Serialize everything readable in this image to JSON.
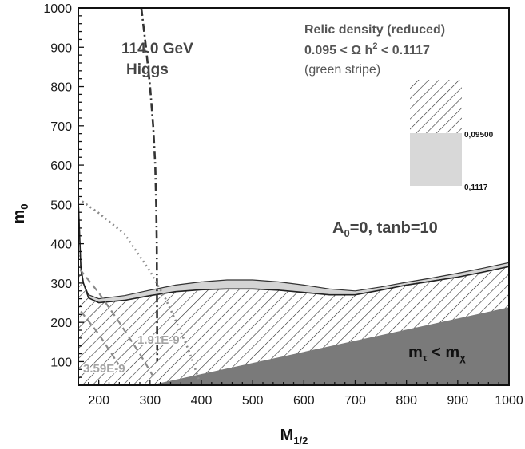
{
  "chart_data": {
    "type": "area",
    "xlabel_main": "M",
    "xlabel_sub": "1/2",
    "ylabel_main": "m",
    "ylabel_sub": "0",
    "xlim": [
      160,
      1000
    ],
    "ylim": [
      40,
      1000
    ],
    "x_ticks": [
      200,
      300,
      400,
      500,
      600,
      700,
      800,
      900,
      1000
    ],
    "y_ticks": [
      100,
      200,
      300,
      400,
      500,
      600,
      700,
      800,
      900,
      1000
    ],
    "annotations": {
      "higgs_value": "114.0  GeV",
      "higgs_label": "Higgs",
      "relic_title": "Relic density  (reduced)",
      "relic_range_left": "0.095 <  Ω h",
      "relic_range_exp": "2",
      "relic_range_right": " < 0.1117",
      "relic_note": "(green stripe)",
      "params_a": "A",
      "params_sub": "0",
      "params_rest": "=0, tanb=10",
      "bsg_label_1": "1.91E-9",
      "bsg_label_2": "3.59E-9",
      "stau_m": "m",
      "stau_tau": "τ",
      "stau_lt": " < m",
      "stau_chi": "χ"
    },
    "legend": {
      "position": "top-right",
      "entries": [
        {
          "label": "0,09500",
          "style": "hatched"
        },
        {
          "label": "0,1117",
          "style": "light-gray"
        }
      ]
    },
    "series": [
      {
        "name": "stau LSP region",
        "style": "dark-gray-fill",
        "x": [
          300,
          1000
        ],
        "y": [
          40,
          238
        ]
      },
      {
        "name": "hatched region upper boundary",
        "style": "hatched",
        "x": [
          160,
          165,
          170,
          180,
          200,
          250,
          300,
          350,
          400,
          450,
          500,
          550,
          600,
          650,
          700,
          750,
          800,
          850,
          900,
          950,
          1000
        ],
        "y": [
          510,
          340,
          300,
          262,
          250,
          256,
          268,
          278,
          283,
          285,
          285,
          282,
          276,
          270,
          270,
          282,
          295,
          305,
          315,
          328,
          342
        ]
      },
      {
        "name": "relic upper boundary",
        "style": "light-gray",
        "x": [
          160,
          165,
          170,
          180,
          200,
          250,
          300,
          350,
          400,
          450,
          500,
          550,
          600,
          650,
          700,
          750,
          800,
          850,
          900,
          950,
          1000
        ],
        "y": [
          520,
          330,
          300,
          270,
          260,
          268,
          282,
          295,
          303,
          308,
          308,
          303,
          295,
          285,
          280,
          290,
          302,
          313,
          325,
          338,
          352
        ]
      },
      {
        "name": "higgs",
        "style": "dash-dot",
        "x": [
          283,
          292,
          300,
          306,
          310,
          312,
          313,
          314
        ],
        "y": [
          1000,
          900,
          800,
          700,
          600,
          500,
          400,
          100
        ]
      },
      {
        "name": "bsg 1.91E-9",
        "style": "dotted-gray",
        "x": [
          160,
          200,
          250,
          300,
          330,
          355,
          375,
          395
        ],
        "y": [
          515,
          478,
          425,
          330,
          260,
          190,
          130,
          55
        ]
      },
      {
        "name": "bsg 3.59E-9",
        "style": "dashed-gray",
        "x": [
          163,
          200,
          240,
          280,
          305
        ],
        "y": [
          335,
          275,
          200,
          120,
          65
        ]
      },
      {
        "name": "bsg 3.59E-9 lower",
        "style": "dashed-gray",
        "x": [
          165,
          200,
          240
        ],
        "y": [
          228,
          170,
          90
        ]
      }
    ]
  }
}
